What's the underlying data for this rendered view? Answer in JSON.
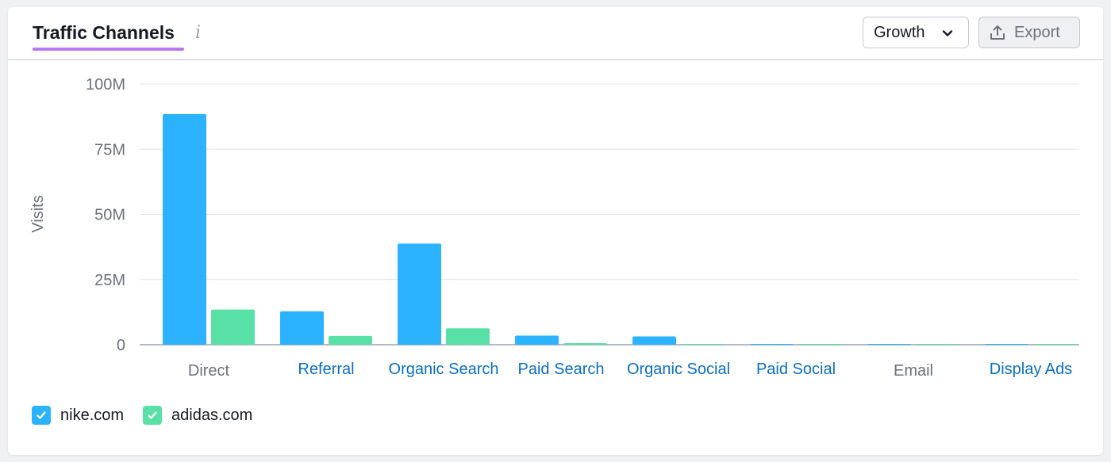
{
  "header": {
    "title": "Traffic Channels",
    "info_icon": "info-icon",
    "growth_label": "Growth",
    "export_label": "Export"
  },
  "colors": {
    "nike": "#2bb3ff",
    "adidas": "#59e0a6",
    "accent_underline": "#b879f5",
    "link": "#0a6fc2",
    "axis_text": "#6c717c"
  },
  "chart_data": {
    "type": "bar",
    "title": "",
    "xlabel": "",
    "ylabel": "Visits",
    "ylim": [
      0,
      100000000
    ],
    "ytick_labels": [
      "0",
      "25M",
      "50M",
      "75M",
      "100M"
    ],
    "yticks": [
      0,
      25000000,
      50000000,
      75000000,
      100000000
    ],
    "grid": true,
    "legend_placement": "bottom-left",
    "categories": [
      "Direct",
      "Referral",
      "Organic Search",
      "Paid Search",
      "Organic Social",
      "Paid Social",
      "Email",
      "Display Ads"
    ],
    "category_is_link": [
      false,
      true,
      true,
      true,
      true,
      true,
      false,
      true
    ],
    "series": [
      {
        "name": "nike.com",
        "values": [
          88500000,
          12800000,
          38800000,
          3500000,
          3200000,
          100000,
          300000,
          100000
        ]
      },
      {
        "name": "adidas.com",
        "values": [
          13500000,
          3400000,
          6300000,
          600000,
          200000,
          50000,
          50000,
          50000
        ]
      }
    ]
  }
}
